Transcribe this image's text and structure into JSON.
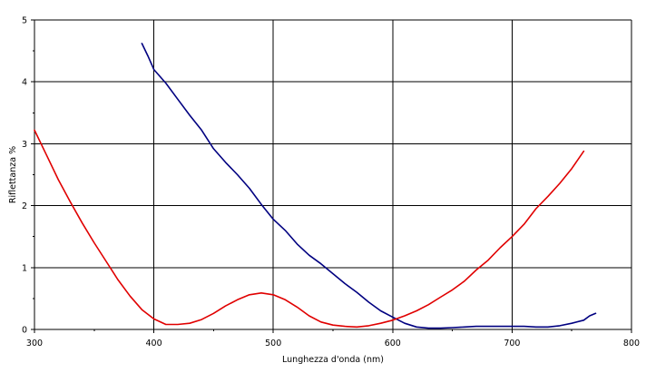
{
  "chart_data": {
    "type": "line",
    "title": "",
    "xlabel": "Lunghezza d'onda (nm)",
    "ylabel": "Riflettanza %",
    "xlim": [
      300,
      800
    ],
    "ylim": [
      0,
      5
    ],
    "x_ticks": [
      300,
      400,
      500,
      600,
      700,
      800
    ],
    "y_ticks": [
      0,
      1,
      2,
      3,
      4,
      5
    ],
    "grid": true,
    "legend": "none",
    "series": [
      {
        "color": "#000080",
        "x": [
          390,
          395,
          400,
          410,
          420,
          430,
          440,
          450,
          460,
          470,
          480,
          490,
          500,
          510,
          520,
          530,
          540,
          550,
          560,
          570,
          580,
          590,
          600,
          610,
          620,
          630,
          640,
          650,
          660,
          670,
          680,
          690,
          700,
          710,
          720,
          730,
          740,
          750,
          760,
          765,
          770
        ],
        "y": [
          4.62,
          4.42,
          4.2,
          3.98,
          3.72,
          3.46,
          3.22,
          2.92,
          2.7,
          2.5,
          2.28,
          2.02,
          1.78,
          1.6,
          1.38,
          1.2,
          1.06,
          0.9,
          0.74,
          0.6,
          0.44,
          0.3,
          0.2,
          0.1,
          0.04,
          0.02,
          0.02,
          0.03,
          0.04,
          0.05,
          0.05,
          0.05,
          0.05,
          0.05,
          0.04,
          0.04,
          0.06,
          0.1,
          0.15,
          0.22,
          0.26
        ]
      },
      {
        "color": "#e00000",
        "x": [
          300,
          310,
          320,
          330,
          340,
          350,
          360,
          370,
          380,
          390,
          400,
          410,
          420,
          430,
          440,
          450,
          460,
          470,
          480,
          490,
          500,
          510,
          520,
          530,
          540,
          550,
          560,
          570,
          580,
          590,
          600,
          610,
          620,
          630,
          640,
          650,
          660,
          670,
          680,
          690,
          700,
          710,
          720,
          730,
          740,
          750,
          760
        ],
        "y": [
          3.22,
          2.82,
          2.42,
          2.06,
          1.72,
          1.4,
          1.1,
          0.8,
          0.54,
          0.32,
          0.17,
          0.08,
          0.08,
          0.1,
          0.16,
          0.26,
          0.38,
          0.48,
          0.56,
          0.59,
          0.56,
          0.48,
          0.36,
          0.22,
          0.12,
          0.07,
          0.05,
          0.04,
          0.06,
          0.1,
          0.15,
          0.22,
          0.3,
          0.4,
          0.52,
          0.64,
          0.78,
          0.96,
          1.12,
          1.32,
          1.5,
          1.7,
          1.95,
          2.15,
          2.36,
          2.6,
          2.88
        ]
      }
    ]
  }
}
